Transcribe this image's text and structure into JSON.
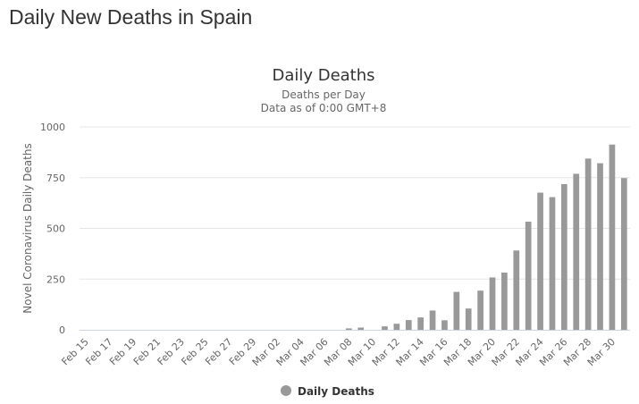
{
  "page": {
    "heading": "Daily New Deaths in Spain"
  },
  "chart_data": {
    "type": "bar",
    "title": "Daily Deaths",
    "subtitle": [
      "Deaths per Day",
      "Data as of 0:00 GMT+8"
    ],
    "xlabel": "",
    "ylabel": "Novel Coronavirus Daily Deaths",
    "ylim": [
      0,
      1000
    ],
    "yticks": [
      0,
      250,
      500,
      750,
      1000
    ],
    "grid": true,
    "legend": "bottom-center",
    "color": "#999999",
    "x_tick_labels": [
      "Feb 15",
      "Feb 17",
      "Feb 19",
      "Feb 21",
      "Feb 23",
      "Feb 25",
      "Feb 27",
      "Feb 29",
      "Mar 02",
      "Mar 04",
      "Mar 06",
      "Mar 08",
      "Mar 10",
      "Mar 12",
      "Mar 14",
      "Mar 16",
      "Mar 18",
      "Mar 20",
      "Mar 22",
      "Mar 24",
      "Mar 26",
      "Mar 28",
      "Mar 30"
    ],
    "categories": [
      "Feb 15",
      "Feb 16",
      "Feb 17",
      "Feb 18",
      "Feb 19",
      "Feb 20",
      "Feb 21",
      "Feb 22",
      "Feb 23",
      "Feb 24",
      "Feb 25",
      "Feb 26",
      "Feb 27",
      "Feb 28",
      "Feb 29",
      "Mar 01",
      "Mar 02",
      "Mar 03",
      "Mar 04",
      "Mar 05",
      "Mar 06",
      "Mar 07",
      "Mar 08",
      "Mar 09",
      "Mar 10",
      "Mar 11",
      "Mar 12",
      "Mar 13",
      "Mar 14",
      "Mar 15",
      "Mar 16",
      "Mar 17",
      "Mar 18",
      "Mar 19",
      "Mar 20",
      "Mar 21",
      "Mar 22",
      "Mar 23",
      "Mar 24",
      "Mar 25",
      "Mar 26",
      "Mar 27",
      "Mar 28",
      "Mar 29",
      "Mar 30",
      "Mar 31"
    ],
    "series": [
      {
        "name": "Daily Deaths",
        "values": [
          0,
          0,
          0,
          0,
          0,
          0,
          0,
          0,
          0,
          0,
          0,
          0,
          0,
          0,
          0,
          0,
          0,
          0,
          0,
          0,
          0,
          0,
          7,
          11,
          0,
          17,
          30,
          48,
          61,
          95,
          47,
          187,
          105,
          193,
          258,
          282,
          391,
          533,
          676,
          654,
          718,
          769,
          844,
          821,
          913,
          748
        ]
      }
    ]
  }
}
